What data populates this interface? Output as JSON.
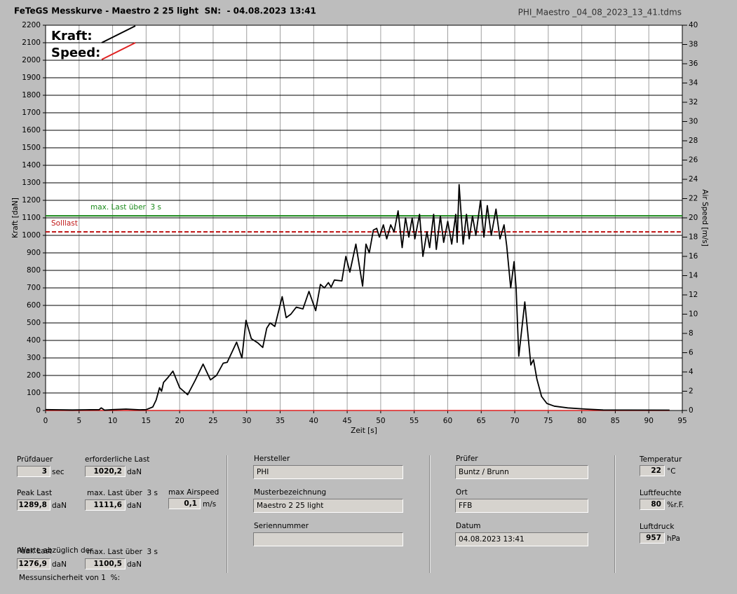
{
  "header": {
    "title": "FeTeGS Messkurve - Maestro 2 25 light  SN:  - 04.08.2023 13:41",
    "file": "PHI_Maestro _04_08_2023_13_41.tdms"
  },
  "chart_data": {
    "type": "line",
    "x_label": "Zeit [s]",
    "y_label": "Kraft [daN]",
    "y2_label": "Air Speed [m/s]",
    "xlim": [
      0,
      95
    ],
    "xticks": [
      0,
      5,
      10,
      15,
      20,
      25,
      30,
      35,
      40,
      45,
      50,
      55,
      60,
      65,
      70,
      75,
      80,
      85,
      90,
      95
    ],
    "ylim": [
      0,
      2200
    ],
    "yticks": [
      0,
      100,
      200,
      300,
      400,
      500,
      600,
      700,
      800,
      900,
      1000,
      1100,
      1200,
      1300,
      1400,
      1500,
      1600,
      1700,
      1800,
      1900,
      2000,
      2100,
      2200
    ],
    "y2lim": [
      0,
      40
    ],
    "y2ticks": [
      0,
      2,
      4,
      6,
      8,
      10,
      12,
      14,
      16,
      18,
      20,
      22,
      24,
      26,
      28,
      30,
      32,
      34,
      36,
      38,
      40
    ],
    "grid": true,
    "legend": "top-left",
    "x": [
      0,
      2,
      4,
      6,
      8,
      8.3,
      8.8,
      10,
      12,
      14,
      15,
      16,
      16.5,
      17,
      17.3,
      17.6,
      18.3,
      19.0,
      20.0,
      21.2,
      22.3,
      23.5,
      24.6,
      25.5,
      26.5,
      27.1,
      28.5,
      29.3,
      29.9,
      30.7,
      31.7,
      32.4,
      33.0,
      33.5,
      34.2,
      35.3,
      35.9,
      36.6,
      37.4,
      38.4,
      39.3,
      40.3,
      41.0,
      41.6,
      42.2,
      42.6,
      43.1,
      44.2,
      44.8,
      45.4,
      46.3,
      47.3,
      47.8,
      48.3,
      48.9,
      49.4,
      49.8,
      50.4,
      50.9,
      51.5,
      52.0,
      52.6,
      53.2,
      53.7,
      54.2,
      54.7,
      55.1,
      55.8,
      56.3,
      56.9,
      57.3,
      57.9,
      58.3,
      58.9,
      59.4,
      60.0,
      60.6,
      61.2,
      61.4,
      61.7,
      62.3,
      62.8,
      63.2,
      63.7,
      64.2,
      64.9,
      65.4,
      65.9,
      66.5,
      67.2,
      67.8,
      68.4,
      68.8,
      69.4,
      69.9,
      70.2,
      70.6,
      71.5,
      72.0,
      72.4,
      72.8,
      73.3,
      74.0,
      74.8,
      75.9,
      77.9,
      80.6,
      83.2,
      93.1
    ],
    "series": [
      {
        "name": "Kraft:",
        "color": "#000000",
        "values": [
          5,
          4,
          3,
          4,
          5,
          15,
          2,
          5,
          8,
          4,
          5,
          20,
          60,
          130,
          110,
          160,
          190,
          225,
          130,
          90,
          170,
          265,
          175,
          200,
          270,
          275,
          390,
          300,
          515,
          410,
          385,
          360,
          470,
          500,
          480,
          650,
          530,
          550,
          590,
          580,
          680,
          570,
          720,
          700,
          730,
          705,
          745,
          740,
          880,
          790,
          950,
          710,
          950,
          900,
          1030,
          1040,
          990,
          1060,
          980,
          1060,
          1020,
          1140,
          930,
          1100,
          990,
          1100,
          980,
          1120,
          880,
          1020,
          930,
          1120,
          920,
          1110,
          960,
          1080,
          950,
          1120,
          960,
          1290,
          950,
          1120,
          980,
          1110,
          1000,
          1200,
          990,
          1170,
          1000,
          1150,
          980,
          1060,
          940,
          700,
          850,
          700,
          310,
          620,
          420,
          260,
          290,
          180,
          80,
          40,
          25,
          15,
          8,
          3,
          2
        ]
      },
      {
        "name": "Speed:",
        "color": "#e02020",
        "axis": "y2",
        "x": [
          0,
          93.1
        ],
        "values": [
          0,
          0
        ]
      }
    ],
    "reference_lines": [
      {
        "label": "max. Last über  3 s",
        "value": 1111.6,
        "color": "#1a8a1a",
        "dashed": false
      },
      {
        "label": "Solllast",
        "value": 1020.2,
        "color": "#c01818",
        "dashed": true
      }
    ]
  },
  "form": {
    "fields": [
      {
        "label": "Prüfdauer",
        "value": "3",
        "unit": "sec"
      },
      {
        "label": "erforderliche Last",
        "value": "1020,2",
        "unit": "daN"
      },
      {
        "label": "Peak Last",
        "value": "1289,8",
        "unit": "daN"
      },
      {
        "label": "max. Last über  3 s",
        "value": "1111,6",
        "unit": "daN"
      },
      {
        "label": "max Airspeed",
        "value": "0,1",
        "unit": "m/s"
      },
      {
        "label": "Peak Last",
        "value": "1276,9",
        "unit": "daN"
      },
      {
        "label": "max. Last über  3 s",
        "value": "1100,5",
        "unit": "daN"
      },
      {
        "label": "Hersteller",
        "value": "PHI"
      },
      {
        "label": "Musterbezeichnung",
        "value": "Maestro 2 25 light"
      },
      {
        "label": "Seriennummer"
      },
      {
        "label": "Prüfer",
        "value": "Buntz / Brunn"
      },
      {
        "label": "Ort",
        "value": "FFB"
      },
      {
        "label": "Datum",
        "value": "04.08.2023 13:41"
      },
      {
        "label": "Temperatur",
        "value": "22",
        "unit": "°C"
      },
      {
        "label": "Luftfeuchte",
        "value": "80",
        "unit": "%r.F."
      },
      {
        "label": "Luftdruck",
        "value": "957",
        "unit": "hPa"
      }
    ],
    "note": [
      "Werte abzüglich der",
      "Messunsicherheit von 1  %:"
    ]
  }
}
